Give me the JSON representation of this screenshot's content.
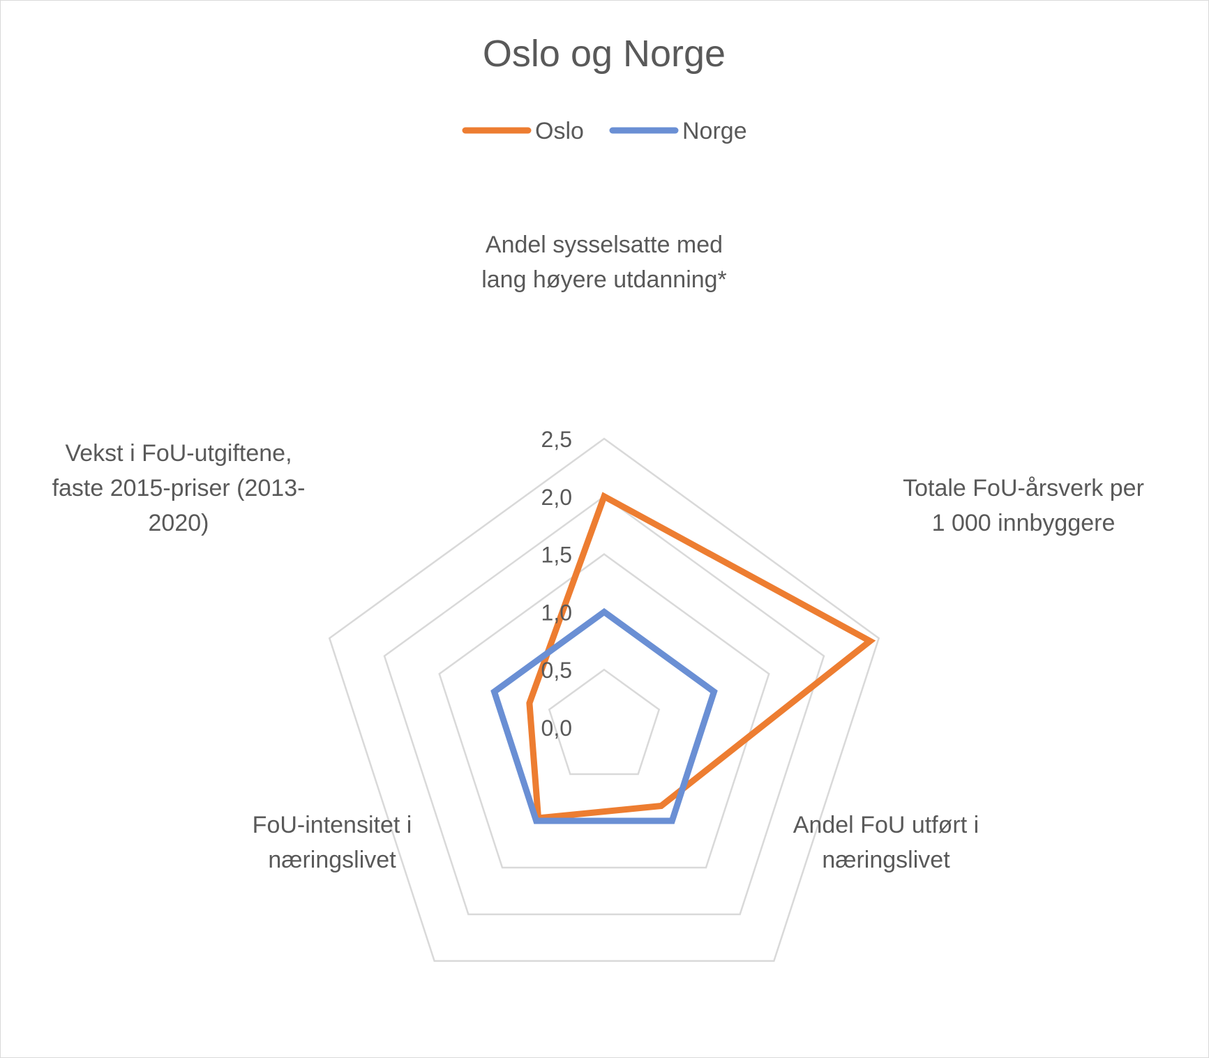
{
  "chart_data": {
    "type": "radar",
    "title": "Oslo og Norge",
    "categories": [
      [
        "Andel sysselsatte med",
        "lang høyere utdanning*"
      ],
      [
        "Totale FoU-årsverk per",
        "1 000 innbyggere"
      ],
      [
        "Andel FoU utført i",
        "næringslivet"
      ],
      [
        "FoU-intensitet i",
        "næringslivet"
      ],
      [
        "Vekst i FoU-utgiftene,",
        "faste 2015-priser (2013-",
        "2020)"
      ]
    ],
    "tick_labels": [
      "0,0",
      "0,5",
      "1,0",
      "1,5",
      "2,0",
      "2,5"
    ],
    "rlim": [
      0,
      2.5
    ],
    "grid": true,
    "legend_position": "top",
    "series": [
      {
        "name": "Oslo",
        "color": "#ED7D31",
        "values": [
          2.0,
          2.42,
          0.84,
          0.97,
          0.68
        ]
      },
      {
        "name": "Norge",
        "color": "#6A8FD4",
        "values": [
          1.0,
          1.0,
          1.0,
          1.0,
          1.0
        ]
      }
    ]
  }
}
